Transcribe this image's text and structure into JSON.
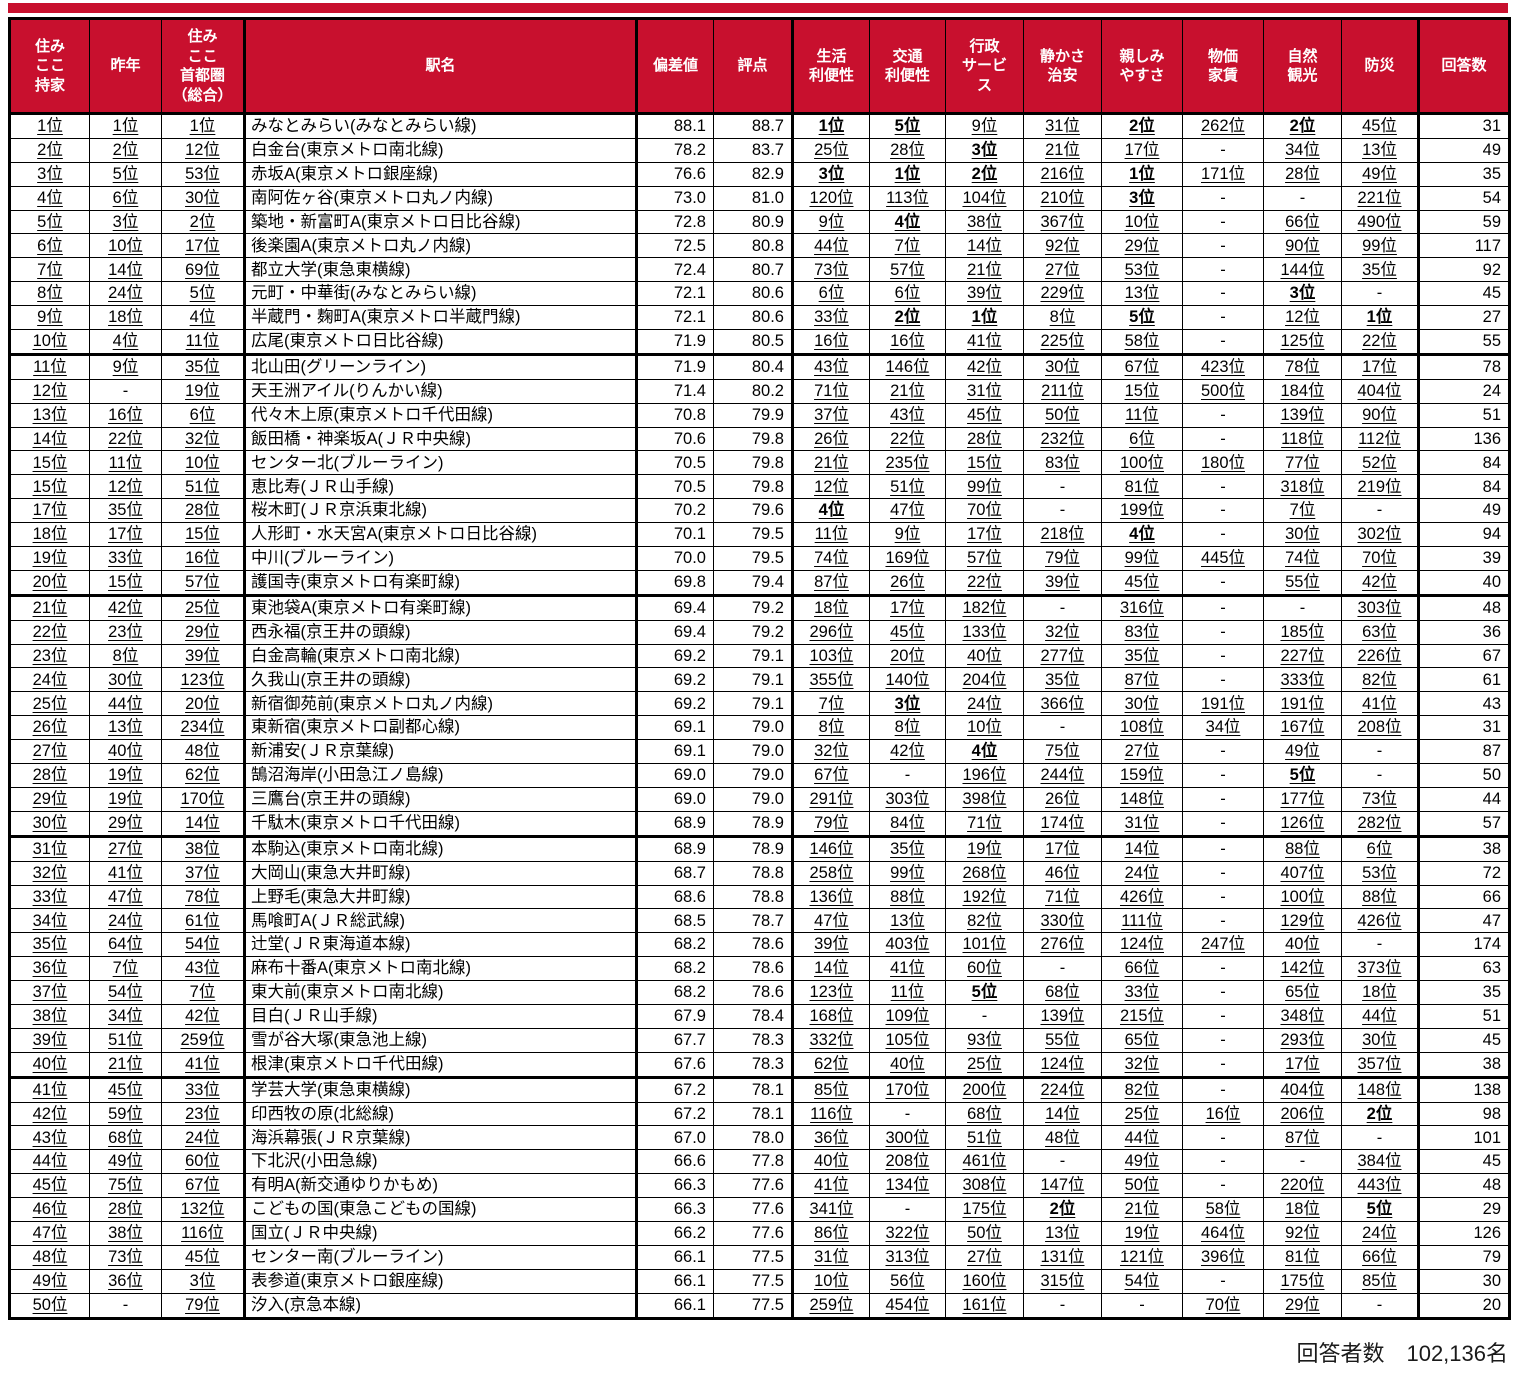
{
  "colors": {
    "header_bg": "#C8102E",
    "header_text": "#FFFFFF",
    "border": "#000000"
  },
  "header": {
    "cols": [
      "住み\nここ\n持家",
      "昨年",
      "住み\nここ\n首都圏\n（総合）",
      "駅名",
      "偏差値",
      "評点",
      "生活\n利便性",
      "交通\n利便性",
      "行政\nサービ\nス",
      "静かさ\n治安",
      "親しみ\nやすさ",
      "物価\n家賃",
      "自然\n観光",
      "防災",
      "回答数"
    ]
  },
  "footer": {
    "respondents": "回答者数　102,136名"
  },
  "rows": [
    {
      "rank": "1位",
      "prev": "1位",
      "metro": "1位",
      "station": "みなとみらい(みなとみらい線)",
      "dev": "88.1",
      "score": "88.7",
      "c1": "1位",
      "c2": "5位",
      "c3": "9位",
      "c4": "31位",
      "c5": "2位",
      "c6": "262位",
      "c7": "2位",
      "c8": "45位",
      "n": "31"
    },
    {
      "rank": "2位",
      "prev": "2位",
      "metro": "12位",
      "station": "白金台(東京メトロ南北線)",
      "dev": "78.2",
      "score": "83.7",
      "c1": "25位",
      "c2": "28位",
      "c3": "3位",
      "c4": "21位",
      "c5": "17位",
      "c6": "-",
      "c7": "34位",
      "c8": "13位",
      "n": "49"
    },
    {
      "rank": "3位",
      "prev": "5位",
      "metro": "53位",
      "station": "赤坂A(東京メトロ銀座線)",
      "dev": "76.6",
      "score": "82.9",
      "c1": "3位",
      "c2": "1位",
      "c3": "2位",
      "c4": "216位",
      "c5": "1位",
      "c6": "171位",
      "c7": "28位",
      "c8": "49位",
      "n": "35"
    },
    {
      "rank": "4位",
      "prev": "6位",
      "metro": "30位",
      "station": "南阿佐ヶ谷(東京メトロ丸ノ内線)",
      "dev": "73.0",
      "score": "81.0",
      "c1": "120位",
      "c2": "113位",
      "c3": "104位",
      "c4": "210位",
      "c5": "3位",
      "c6": "-",
      "c7": "-",
      "c8": "221位",
      "n": "54"
    },
    {
      "rank": "5位",
      "prev": "3位",
      "metro": "2位",
      "station": "築地・新富町A(東京メトロ日比谷線)",
      "dev": "72.8",
      "score": "80.9",
      "c1": "9位",
      "c2": "4位",
      "c3": "38位",
      "c4": "367位",
      "c5": "10位",
      "c6": "-",
      "c7": "66位",
      "c8": "490位",
      "n": "59"
    },
    {
      "rank": "6位",
      "prev": "10位",
      "metro": "17位",
      "station": "後楽園A(東京メトロ丸ノ内線)",
      "dev": "72.5",
      "score": "80.8",
      "c1": "44位",
      "c2": "7位",
      "c3": "14位",
      "c4": "92位",
      "c5": "29位",
      "c6": "-",
      "c7": "90位",
      "c8": "99位",
      "n": "117"
    },
    {
      "rank": "7位",
      "prev": "14位",
      "metro": "69位",
      "station": "都立大学(東急東横線)",
      "dev": "72.4",
      "score": "80.7",
      "c1": "73位",
      "c2": "57位",
      "c3": "21位",
      "c4": "27位",
      "c5": "53位",
      "c6": "-",
      "c7": "144位",
      "c8": "35位",
      "n": "92"
    },
    {
      "rank": "8位",
      "prev": "24位",
      "metro": "5位",
      "station": "元町・中華街(みなとみらい線)",
      "dev": "72.1",
      "score": "80.6",
      "c1": "6位",
      "c2": "6位",
      "c3": "39位",
      "c4": "229位",
      "c5": "13位",
      "c6": "-",
      "c7": "3位",
      "c8": "-",
      "n": "45"
    },
    {
      "rank": "9位",
      "prev": "18位",
      "metro": "4位",
      "station": "半蔵門・麹町A(東京メトロ半蔵門線)",
      "dev": "72.1",
      "score": "80.6",
      "c1": "33位",
      "c2": "2位",
      "c3": "1位",
      "c4": "8位",
      "c5": "5位",
      "c6": "-",
      "c7": "12位",
      "c8": "1位",
      "n": "27"
    },
    {
      "rank": "10位",
      "prev": "4位",
      "metro": "11位",
      "station": "広尾(東京メトロ日比谷線)",
      "dev": "71.9",
      "score": "80.5",
      "c1": "16位",
      "c2": "16位",
      "c3": "41位",
      "c4": "225位",
      "c5": "58位",
      "c6": "-",
      "c7": "125位",
      "c8": "22位",
      "n": "55"
    },
    {
      "rank": "11位",
      "prev": "9位",
      "metro": "35位",
      "station": "北山田(グリーンライン)",
      "dev": "71.9",
      "score": "80.4",
      "c1": "43位",
      "c2": "146位",
      "c3": "42位",
      "c4": "30位",
      "c5": "67位",
      "c6": "423位",
      "c7": "78位",
      "c8": "17位",
      "n": "78"
    },
    {
      "rank": "12位",
      "prev": "-",
      "metro": "19位",
      "station": "天王洲アイル(りんかい線)",
      "dev": "71.4",
      "score": "80.2",
      "c1": "71位",
      "c2": "21位",
      "c3": "31位",
      "c4": "211位",
      "c5": "15位",
      "c6": "500位",
      "c7": "184位",
      "c8": "404位",
      "n": "24"
    },
    {
      "rank": "13位",
      "prev": "16位",
      "metro": "6位",
      "station": "代々木上原(東京メトロ千代田線)",
      "dev": "70.8",
      "score": "79.9",
      "c1": "37位",
      "c2": "43位",
      "c3": "45位",
      "c4": "50位",
      "c5": "11位",
      "c6": "-",
      "c7": "139位",
      "c8": "90位",
      "n": "51"
    },
    {
      "rank": "14位",
      "prev": "22位",
      "metro": "32位",
      "station": "飯田橋・神楽坂A(ＪＲ中央線)",
      "dev": "70.6",
      "score": "79.8",
      "c1": "26位",
      "c2": "22位",
      "c3": "28位",
      "c4": "232位",
      "c5": "6位",
      "c6": "-",
      "c7": "118位",
      "c8": "112位",
      "n": "136"
    },
    {
      "rank": "15位",
      "prev": "11位",
      "metro": "10位",
      "station": "センター北(ブルーライン)",
      "dev": "70.5",
      "score": "79.8",
      "c1": "21位",
      "c2": "235位",
      "c3": "15位",
      "c4": "83位",
      "c5": "100位",
      "c6": "180位",
      "c7": "77位",
      "c8": "52位",
      "n": "84"
    },
    {
      "rank": "15位",
      "prev": "12位",
      "metro": "51位",
      "station": "恵比寿(ＪＲ山手線)",
      "dev": "70.5",
      "score": "79.8",
      "c1": "12位",
      "c2": "51位",
      "c3": "99位",
      "c4": "-",
      "c5": "81位",
      "c6": "-",
      "c7": "318位",
      "c8": "219位",
      "n": "84"
    },
    {
      "rank": "17位",
      "prev": "35位",
      "metro": "28位",
      "station": "桜木町(ＪＲ京浜東北線)",
      "dev": "70.2",
      "score": "79.6",
      "c1": "4位",
      "c2": "47位",
      "c3": "70位",
      "c4": "-",
      "c5": "199位",
      "c6": "-",
      "c7": "7位",
      "c8": "-",
      "n": "49"
    },
    {
      "rank": "18位",
      "prev": "17位",
      "metro": "15位",
      "station": "人形町・水天宮A(東京メトロ日比谷線)",
      "dev": "70.1",
      "score": "79.5",
      "c1": "11位",
      "c2": "9位",
      "c3": "17位",
      "c4": "218位",
      "c5": "4位",
      "c6": "-",
      "c7": "30位",
      "c8": "302位",
      "n": "94"
    },
    {
      "rank": "19位",
      "prev": "33位",
      "metro": "16位",
      "station": "中川(ブルーライン)",
      "dev": "70.0",
      "score": "79.5",
      "c1": "74位",
      "c2": "169位",
      "c3": "57位",
      "c4": "79位",
      "c5": "99位",
      "c6": "445位",
      "c7": "74位",
      "c8": "70位",
      "n": "39"
    },
    {
      "rank": "20位",
      "prev": "15位",
      "metro": "57位",
      "station": "護国寺(東京メトロ有楽町線)",
      "dev": "69.8",
      "score": "79.4",
      "c1": "87位",
      "c2": "26位",
      "c3": "22位",
      "c4": "39位",
      "c5": "45位",
      "c6": "-",
      "c7": "55位",
      "c8": "42位",
      "n": "40"
    },
    {
      "rank": "21位",
      "prev": "42位",
      "metro": "25位",
      "station": "東池袋A(東京メトロ有楽町線)",
      "dev": "69.4",
      "score": "79.2",
      "c1": "18位",
      "c2": "17位",
      "c3": "182位",
      "c4": "-",
      "c5": "316位",
      "c6": "-",
      "c7": "-",
      "c8": "303位",
      "n": "48"
    },
    {
      "rank": "22位",
      "prev": "23位",
      "metro": "29位",
      "station": "西永福(京王井の頭線)",
      "dev": "69.4",
      "score": "79.2",
      "c1": "296位",
      "c2": "45位",
      "c3": "133位",
      "c4": "32位",
      "c5": "83位",
      "c6": "-",
      "c7": "185位",
      "c8": "63位",
      "n": "36"
    },
    {
      "rank": "23位",
      "prev": "8位",
      "metro": "39位",
      "station": "白金高輪(東京メトロ南北線)",
      "dev": "69.2",
      "score": "79.1",
      "c1": "103位",
      "c2": "20位",
      "c3": "40位",
      "c4": "277位",
      "c5": "35位",
      "c6": "-",
      "c7": "227位",
      "c8": "226位",
      "n": "67"
    },
    {
      "rank": "24位",
      "prev": "30位",
      "metro": "123位",
      "station": "久我山(京王井の頭線)",
      "dev": "69.2",
      "score": "79.1",
      "c1": "355位",
      "c2": "140位",
      "c3": "204位",
      "c4": "35位",
      "c5": "87位",
      "c6": "-",
      "c7": "333位",
      "c8": "82位",
      "n": "61"
    },
    {
      "rank": "25位",
      "prev": "44位",
      "metro": "20位",
      "station": "新宿御苑前(東京メトロ丸ノ内線)",
      "dev": "69.2",
      "score": "79.1",
      "c1": "7位",
      "c2": "3位",
      "c3": "24位",
      "c4": "366位",
      "c5": "30位",
      "c6": "191位",
      "c7": "191位",
      "c8": "41位",
      "n": "43"
    },
    {
      "rank": "26位",
      "prev": "13位",
      "metro": "234位",
      "station": "東新宿(東京メトロ副都心線)",
      "dev": "69.1",
      "score": "79.0",
      "c1": "8位",
      "c2": "8位",
      "c3": "10位",
      "c4": "-",
      "c5": "108位",
      "c6": "34位",
      "c7": "167位",
      "c8": "208位",
      "n": "31"
    },
    {
      "rank": "27位",
      "prev": "40位",
      "metro": "48位",
      "station": "新浦安(ＪＲ京葉線)",
      "dev": "69.1",
      "score": "79.0",
      "c1": "32位",
      "c2": "42位",
      "c3": "4位",
      "c4": "75位",
      "c5": "27位",
      "c6": "-",
      "c7": "49位",
      "c8": "-",
      "n": "87"
    },
    {
      "rank": "28位",
      "prev": "19位",
      "metro": "62位",
      "station": "鵠沼海岸(小田急江ノ島線)",
      "dev": "69.0",
      "score": "79.0",
      "c1": "67位",
      "c2": "-",
      "c3": "196位",
      "c4": "244位",
      "c5": "159位",
      "c6": "-",
      "c7": "5位",
      "c8": "-",
      "n": "50"
    },
    {
      "rank": "29位",
      "prev": "19位",
      "metro": "170位",
      "station": "三鷹台(京王井の頭線)",
      "dev": "69.0",
      "score": "79.0",
      "c1": "291位",
      "c2": "303位",
      "c3": "398位",
      "c4": "26位",
      "c5": "148位",
      "c6": "-",
      "c7": "177位",
      "c8": "73位",
      "n": "44"
    },
    {
      "rank": "30位",
      "prev": "29位",
      "metro": "14位",
      "station": "千駄木(東京メトロ千代田線)",
      "dev": "68.9",
      "score": "78.9",
      "c1": "79位",
      "c2": "84位",
      "c3": "71位",
      "c4": "174位",
      "c5": "31位",
      "c6": "-",
      "c7": "126位",
      "c8": "282位",
      "n": "57"
    },
    {
      "rank": "31位",
      "prev": "27位",
      "metro": "38位",
      "station": "本駒込(東京メトロ南北線)",
      "dev": "68.9",
      "score": "78.9",
      "c1": "146位",
      "c2": "35位",
      "c3": "19位",
      "c4": "17位",
      "c5": "14位",
      "c6": "-",
      "c7": "88位",
      "c8": "6位",
      "n": "38"
    },
    {
      "rank": "32位",
      "prev": "41位",
      "metro": "37位",
      "station": "大岡山(東急大井町線)",
      "dev": "68.7",
      "score": "78.8",
      "c1": "258位",
      "c2": "99位",
      "c3": "268位",
      "c4": "46位",
      "c5": "24位",
      "c6": "-",
      "c7": "407位",
      "c8": "53位",
      "n": "72"
    },
    {
      "rank": "33位",
      "prev": "47位",
      "metro": "78位",
      "station": "上野毛(東急大井町線)",
      "dev": "68.6",
      "score": "78.8",
      "c1": "136位",
      "c2": "88位",
      "c3": "192位",
      "c4": "71位",
      "c5": "426位",
      "c6": "-",
      "c7": "100位",
      "c8": "88位",
      "n": "66"
    },
    {
      "rank": "34位",
      "prev": "24位",
      "metro": "61位",
      "station": "馬喰町A(ＪＲ総武線)",
      "dev": "68.5",
      "score": "78.7",
      "c1": "47位",
      "c2": "13位",
      "c3": "82位",
      "c4": "330位",
      "c5": "111位",
      "c6": "-",
      "c7": "129位",
      "c8": "426位",
      "n": "47"
    },
    {
      "rank": "35位",
      "prev": "64位",
      "metro": "54位",
      "station": "辻堂(ＪＲ東海道本線)",
      "dev": "68.2",
      "score": "78.6",
      "c1": "39位",
      "c2": "403位",
      "c3": "101位",
      "c4": "276位",
      "c5": "124位",
      "c6": "247位",
      "c7": "40位",
      "c8": "-",
      "n": "174"
    },
    {
      "rank": "36位",
      "prev": "7位",
      "metro": "43位",
      "station": "麻布十番A(東京メトロ南北線)",
      "dev": "68.2",
      "score": "78.6",
      "c1": "14位",
      "c2": "41位",
      "c3": "60位",
      "c4": "-",
      "c5": "66位",
      "c6": "-",
      "c7": "142位",
      "c8": "373位",
      "n": "63"
    },
    {
      "rank": "37位",
      "prev": "54位",
      "metro": "7位",
      "station": "東大前(東京メトロ南北線)",
      "dev": "68.2",
      "score": "78.6",
      "c1": "123位",
      "c2": "11位",
      "c3": "5位",
      "c4": "68位",
      "c5": "33位",
      "c6": "-",
      "c7": "65位",
      "c8": "18位",
      "n": "35"
    },
    {
      "rank": "38位",
      "prev": "34位",
      "metro": "42位",
      "station": "目白(ＪＲ山手線)",
      "dev": "67.9",
      "score": "78.4",
      "c1": "168位",
      "c2": "109位",
      "c3": "-",
      "c4": "139位",
      "c5": "215位",
      "c6": "-",
      "c7": "348位",
      "c8": "44位",
      "n": "51"
    },
    {
      "rank": "39位",
      "prev": "51位",
      "metro": "259位",
      "station": "雪が谷大塚(東急池上線)",
      "dev": "67.7",
      "score": "78.3",
      "c1": "332位",
      "c2": "105位",
      "c3": "93位",
      "c4": "55位",
      "c5": "65位",
      "c6": "-",
      "c7": "293位",
      "c8": "30位",
      "n": "45"
    },
    {
      "rank": "40位",
      "prev": "21位",
      "metro": "41位",
      "station": "根津(東京メトロ千代田線)",
      "dev": "67.6",
      "score": "78.3",
      "c1": "62位",
      "c2": "40位",
      "c3": "25位",
      "c4": "124位",
      "c5": "32位",
      "c6": "-",
      "c7": "17位",
      "c8": "357位",
      "n": "38"
    },
    {
      "rank": "41位",
      "prev": "45位",
      "metro": "33位",
      "station": "学芸大学(東急東横線)",
      "dev": "67.2",
      "score": "78.1",
      "c1": "85位",
      "c2": "170位",
      "c3": "200位",
      "c4": "224位",
      "c5": "82位",
      "c6": "-",
      "c7": "404位",
      "c8": "148位",
      "n": "138"
    },
    {
      "rank": "42位",
      "prev": "59位",
      "metro": "23位",
      "station": "印西牧の原(北総線)",
      "dev": "67.2",
      "score": "78.1",
      "c1": "116位",
      "c2": "-",
      "c3": "68位",
      "c4": "14位",
      "c5": "25位",
      "c6": "16位",
      "c7": "206位",
      "c8": "2位",
      "n": "98"
    },
    {
      "rank": "43位",
      "prev": "68位",
      "metro": "24位",
      "station": "海浜幕張(ＪＲ京葉線)",
      "dev": "67.0",
      "score": "78.0",
      "c1": "36位",
      "c2": "300位",
      "c3": "51位",
      "c4": "48位",
      "c5": "44位",
      "c6": "-",
      "c7": "87位",
      "c8": "-",
      "n": "101"
    },
    {
      "rank": "44位",
      "prev": "49位",
      "metro": "60位",
      "station": "下北沢(小田急線)",
      "dev": "66.6",
      "score": "77.8",
      "c1": "40位",
      "c2": "208位",
      "c3": "461位",
      "c4": "-",
      "c5": "49位",
      "c6": "-",
      "c7": "-",
      "c8": "384位",
      "n": "45"
    },
    {
      "rank": "45位",
      "prev": "75位",
      "metro": "67位",
      "station": "有明A(新交通ゆりかもめ)",
      "dev": "66.3",
      "score": "77.6",
      "c1": "41位",
      "c2": "134位",
      "c3": "308位",
      "c4": "147位",
      "c5": "50位",
      "c6": "-",
      "c7": "220位",
      "c8": "443位",
      "n": "48"
    },
    {
      "rank": "46位",
      "prev": "28位",
      "metro": "132位",
      "station": "こどもの国(東急こどもの国線)",
      "dev": "66.3",
      "score": "77.6",
      "c1": "341位",
      "c2": "-",
      "c3": "175位",
      "c4": "2位",
      "c5": "21位",
      "c6": "58位",
      "c7": "18位",
      "c8": "5位",
      "n": "29"
    },
    {
      "rank": "47位",
      "prev": "38位",
      "metro": "116位",
      "station": "国立(ＪＲ中央線)",
      "dev": "66.2",
      "score": "77.6",
      "c1": "86位",
      "c2": "322位",
      "c3": "50位",
      "c4": "13位",
      "c5": "19位",
      "c6": "464位",
      "c7": "92位",
      "c8": "24位",
      "n": "126"
    },
    {
      "rank": "48位",
      "prev": "73位",
      "metro": "45位",
      "station": "センター南(ブルーライン)",
      "dev": "66.1",
      "score": "77.5",
      "c1": "31位",
      "c2": "313位",
      "c3": "27位",
      "c4": "131位",
      "c5": "121位",
      "c6": "396位",
      "c7": "81位",
      "c8": "66位",
      "n": "79"
    },
    {
      "rank": "49位",
      "prev": "36位",
      "metro": "3位",
      "station": "表参道(東京メトロ銀座線)",
      "dev": "66.1",
      "score": "77.5",
      "c1": "10位",
      "c2": "56位",
      "c3": "160位",
      "c4": "315位",
      "c5": "54位",
      "c6": "-",
      "c7": "175位",
      "c8": "85位",
      "n": "30"
    },
    {
      "rank": "50位",
      "prev": "-",
      "metro": "79位",
      "station": "汐入(京急本線)",
      "dev": "66.1",
      "score": "77.5",
      "c1": "259位",
      "c2": "454位",
      "c3": "161位",
      "c4": "-",
      "c5": "-",
      "c6": "70位",
      "c7": "29位",
      "c8": "-",
      "n": "20"
    }
  ]
}
